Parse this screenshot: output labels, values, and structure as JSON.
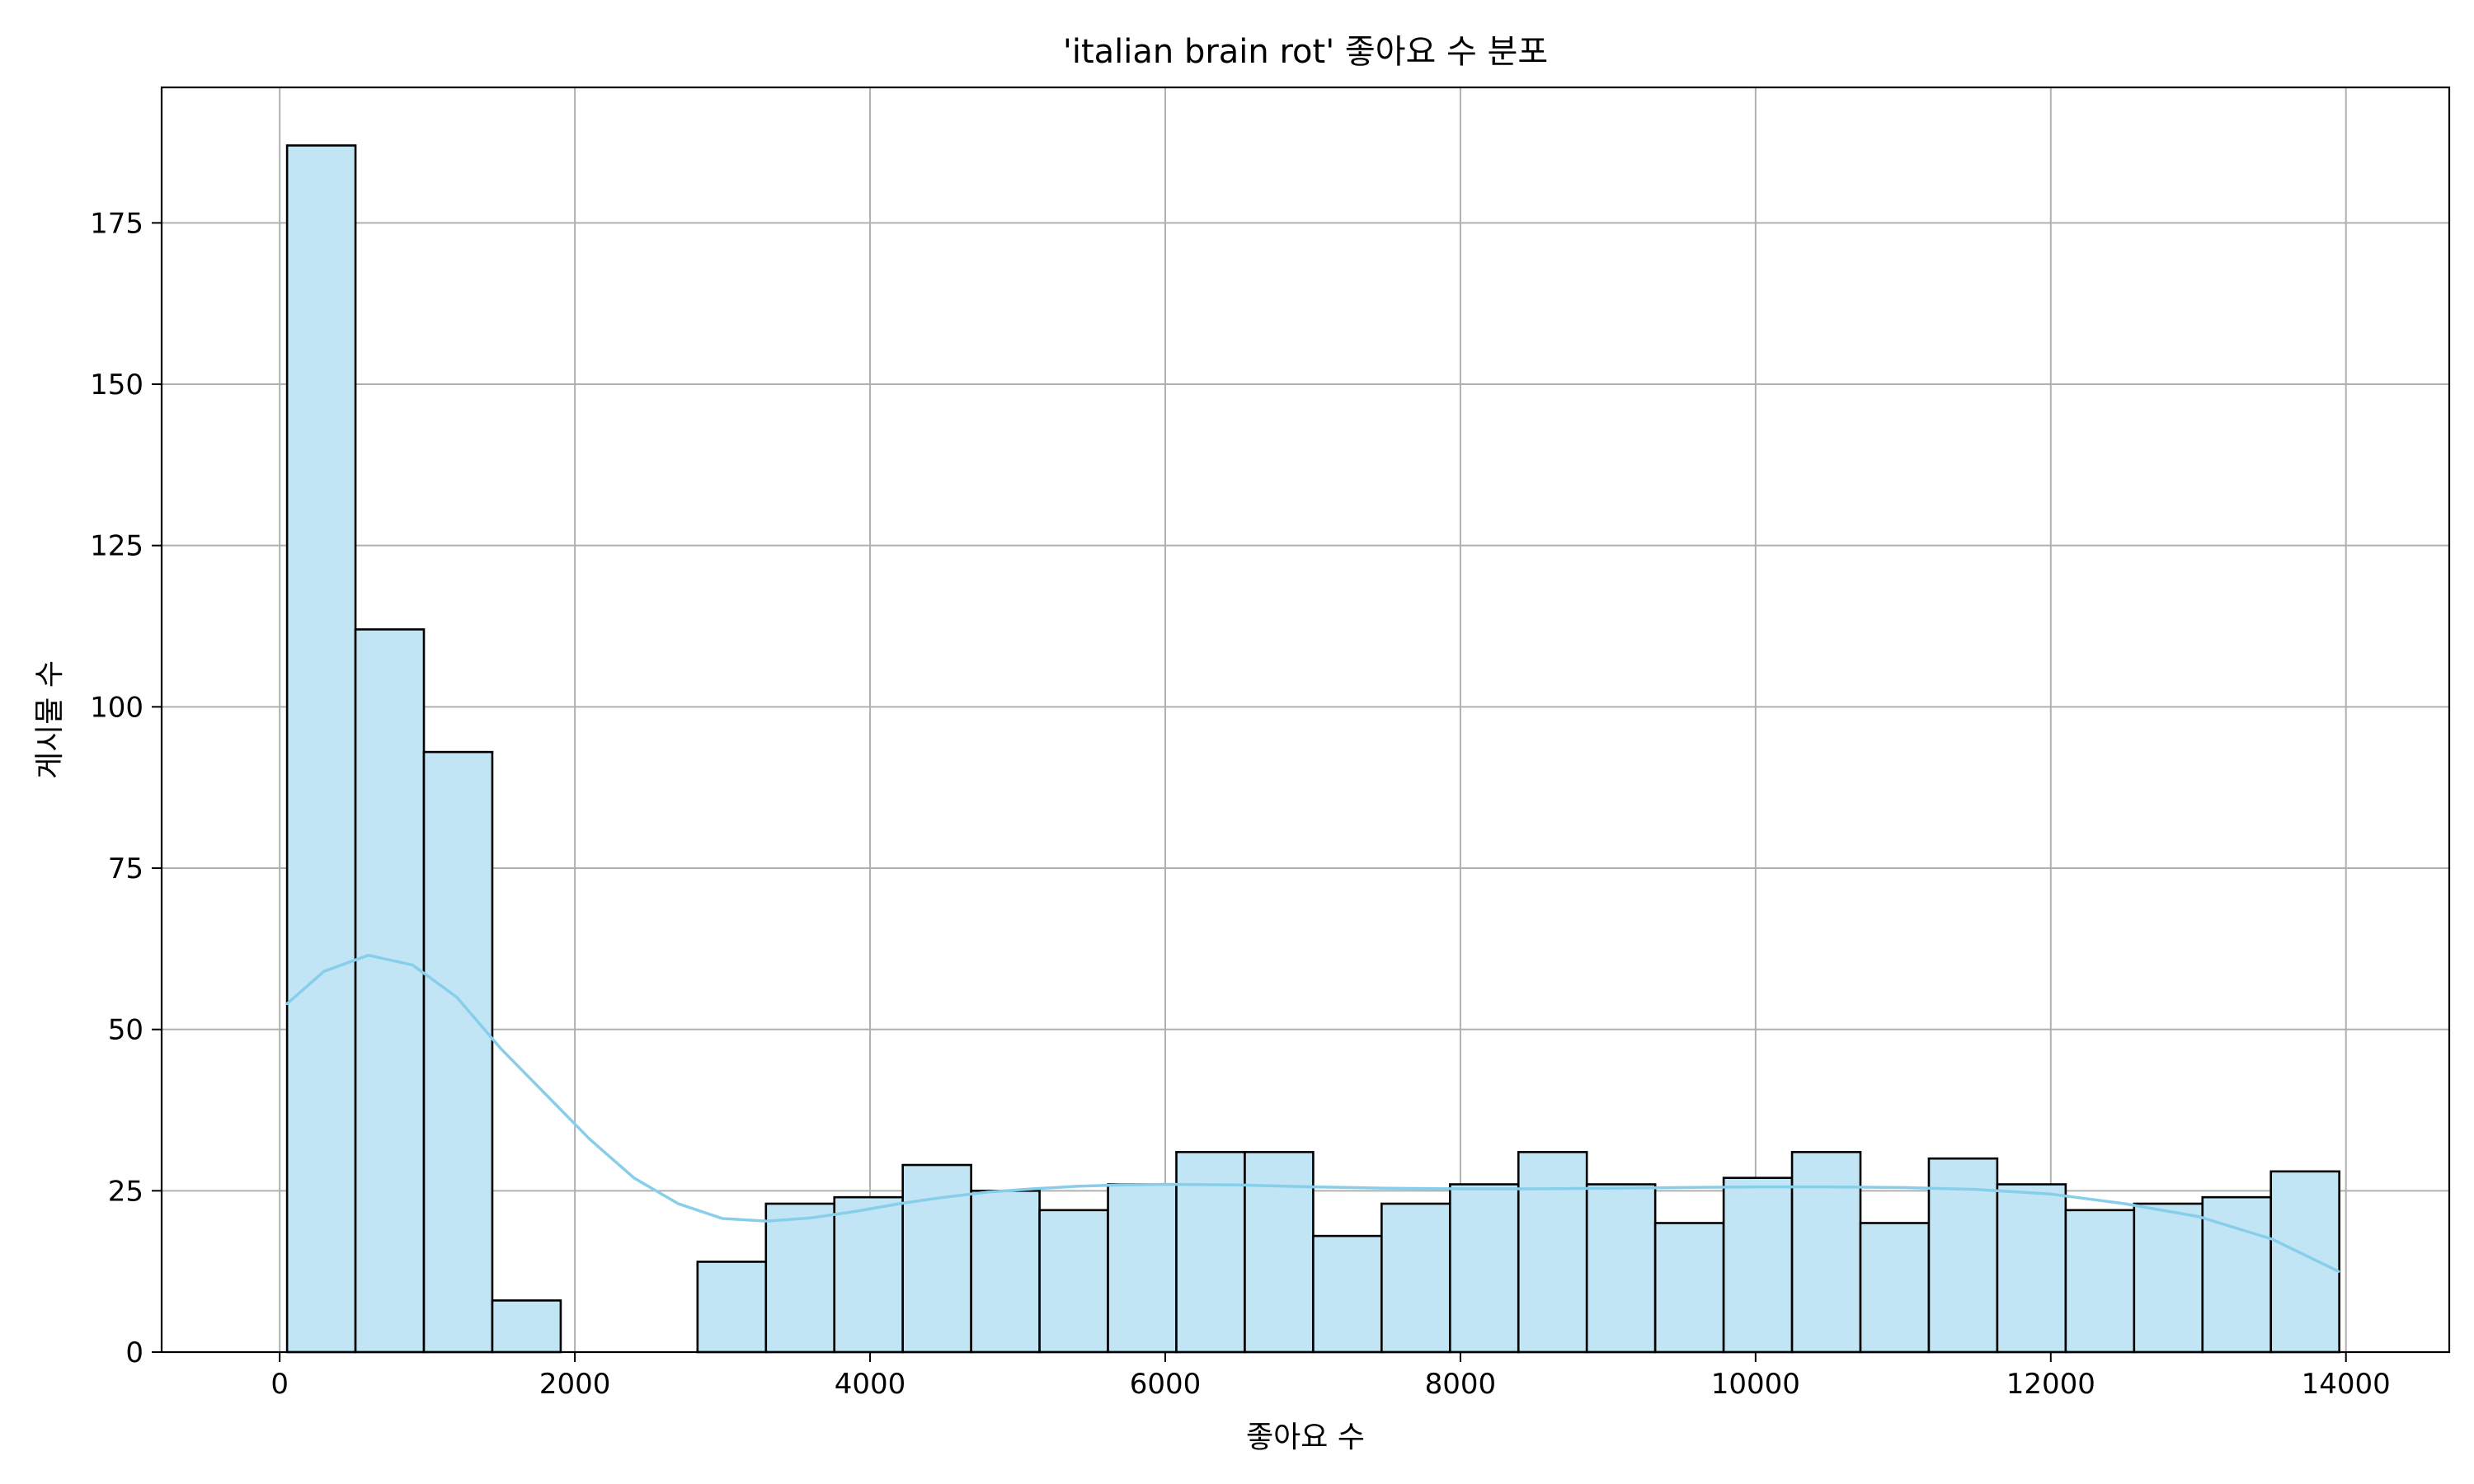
{
  "chart_data": {
    "type": "histogram",
    "title": "'italian brain rot' 좋아요 수 분포",
    "xlabel": "좋아요 수",
    "ylabel": "게시물 수",
    "xlim": [
      -800,
      14700
    ],
    "ylim": [
      0,
      196
    ],
    "x_ticks": [
      0,
      2000,
      4000,
      6000,
      8000,
      10000,
      12000,
      14000
    ],
    "x_tick_labels": [
      "0",
      "2000",
      "4000",
      "6000",
      "8000",
      "10000",
      "12000",
      "14000"
    ],
    "y_ticks": [
      0,
      25,
      50,
      75,
      100,
      125,
      150,
      175
    ],
    "y_tick_labels": [
      "0",
      "25",
      "50",
      "75",
      "100",
      "125",
      "150",
      "175"
    ],
    "grid": true,
    "bin_start": 50,
    "bin_width": 463.5,
    "counts": [
      187,
      112,
      93,
      8,
      0,
      0,
      14,
      23,
      24,
      29,
      25,
      22,
      26,
      31,
      31,
      18,
      23,
      26,
      31,
      26,
      20,
      27,
      31,
      20,
      30,
      26,
      22,
      23,
      24,
      28
    ],
    "bar_fill": "#c1e5f4",
    "bar_edge": "#000000",
    "kde": {
      "color": "#87ceeb",
      "x": [
        50,
        300,
        600,
        900,
        1200,
        1500,
        1800,
        2100,
        2400,
        2700,
        3000,
        3300,
        3600,
        3900,
        4200,
        4500,
        4800,
        5100,
        5400,
        5700,
        6000,
        6500,
        7000,
        7500,
        8000,
        8500,
        9000,
        9500,
        10000,
        10500,
        11000,
        11500,
        12000,
        12500,
        13000,
        13500,
        13950
      ],
      "y": [
        54,
        59,
        61.5,
        60,
        55,
        47,
        40,
        33,
        27,
        23,
        20.7,
        20.3,
        20.8,
        21.8,
        23,
        24,
        24.8,
        25.3,
        25.7,
        25.9,
        26,
        25.9,
        25.6,
        25.4,
        25.3,
        25.3,
        25.4,
        25.5,
        25.6,
        25.6,
        25.5,
        25.2,
        24.5,
        23,
        21,
        17.5,
        12.5
      ]
    }
  }
}
